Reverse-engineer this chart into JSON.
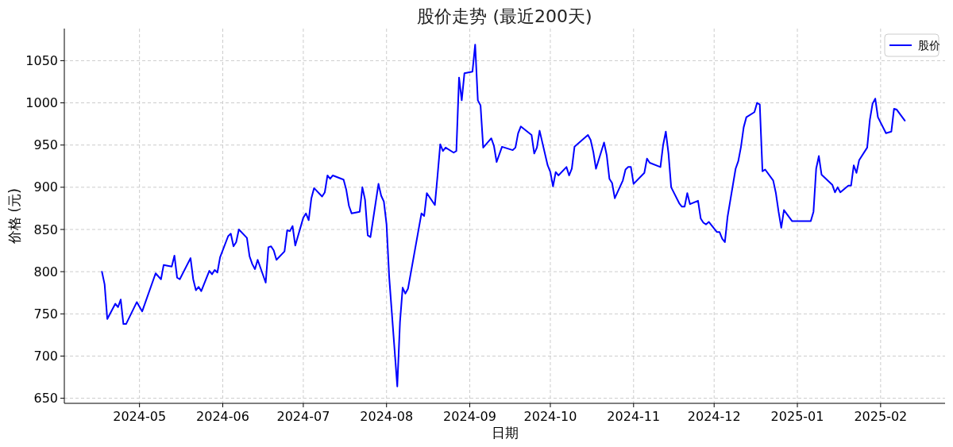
{
  "chart_data": {
    "type": "line",
    "title": "股价走势 (最近200天)",
    "xlabel": "日期",
    "ylabel": "价格 (元)",
    "grid": true,
    "legend": "top right",
    "xlim": [
      "2024-04-03",
      "2025-02-25"
    ],
    "ylim": [
      644,
      1088
    ],
    "xticks": [
      {
        "value": "2024-05-01",
        "label": "2024-05"
      },
      {
        "value": "2024-06-01",
        "label": "2024-06"
      },
      {
        "value": "2024-07-01",
        "label": "2024-07"
      },
      {
        "value": "2024-08-01",
        "label": "2024-08"
      },
      {
        "value": "2024-09-01",
        "label": "2024-09"
      },
      {
        "value": "2024-10-01",
        "label": "2024-10"
      },
      {
        "value": "2024-11-01",
        "label": "2024-11"
      },
      {
        "value": "2024-12-01",
        "label": "2024-12"
      },
      {
        "value": "2025-01-01",
        "label": "2025-01"
      },
      {
        "value": "2025-02-01",
        "label": "2025-02"
      }
    ],
    "yticks": [
      650,
      700,
      750,
      800,
      850,
      900,
      950,
      1000,
      1050
    ],
    "series": [
      {
        "name": "股价",
        "color": "#0000ff",
        "x": [
          "2024-04-17",
          "2024-04-18",
          "2024-04-19",
          "2024-04-22",
          "2024-04-23",
          "2024-04-24",
          "2024-04-25",
          "2024-04-26",
          "2024-04-30",
          "2024-05-02",
          "2024-05-07",
          "2024-05-09",
          "2024-05-10",
          "2024-05-13",
          "2024-05-14",
          "2024-05-15",
          "2024-05-16",
          "2024-05-20",
          "2024-05-21",
          "2024-05-22",
          "2024-05-23",
          "2024-05-24",
          "2024-05-27",
          "2024-05-28",
          "2024-05-29",
          "2024-05-30",
          "2024-05-31",
          "2024-06-03",
          "2024-06-04",
          "2024-06-05",
          "2024-06-06",
          "2024-06-07",
          "2024-06-10",
          "2024-06-11",
          "2024-06-12",
          "2024-06-13",
          "2024-06-14",
          "2024-06-17",
          "2024-06-18",
          "2024-06-19",
          "2024-06-20",
          "2024-06-21",
          "2024-06-24",
          "2024-06-25",
          "2024-06-26",
          "2024-06-27",
          "2024-06-28",
          "2024-07-01",
          "2024-07-02",
          "2024-07-03",
          "2024-07-04",
          "2024-07-05",
          "2024-07-08",
          "2024-07-09",
          "2024-07-10",
          "2024-07-11",
          "2024-07-12",
          "2024-07-16",
          "2024-07-17",
          "2024-07-18",
          "2024-07-19",
          "2024-07-22",
          "2024-07-23",
          "2024-07-24",
          "2024-07-25",
          "2024-07-26",
          "2024-07-29",
          "2024-07-30",
          "2024-07-31",
          "2024-08-01",
          "2024-08-02",
          "2024-08-05",
          "2024-08-06",
          "2024-08-07",
          "2024-08-08",
          "2024-08-09",
          "2024-08-14",
          "2024-08-15",
          "2024-08-16",
          "2024-08-19",
          "2024-08-20",
          "2024-08-21",
          "2024-08-22",
          "2024-08-23",
          "2024-08-26",
          "2024-08-27",
          "2024-08-28",
          "2024-08-29",
          "2024-08-30",
          "2024-09-02",
          "2024-09-03",
          "2024-09-04",
          "2024-09-05",
          "2024-09-06",
          "2024-09-09",
          "2024-09-10",
          "2024-09-11",
          "2024-09-13",
          "2024-09-17",
          "2024-09-18",
          "2024-09-19",
          "2024-09-20",
          "2024-09-24",
          "2024-09-25",
          "2024-09-26",
          "2024-09-27",
          "2024-09-30",
          "2024-10-01",
          "2024-10-02",
          "2024-10-03",
          "2024-10-04",
          "2024-10-07",
          "2024-10-08",
          "2024-10-09",
          "2024-10-10",
          "2024-10-15",
          "2024-10-16",
          "2024-10-17",
          "2024-10-18",
          "2024-10-21",
          "2024-10-22",
          "2024-10-23",
          "2024-10-24",
          "2024-10-25",
          "2024-10-28",
          "2024-10-29",
          "2024-10-30",
          "2024-10-31",
          "2024-11-01",
          "2024-11-05",
          "2024-11-06",
          "2024-11-07",
          "2024-11-11",
          "2024-11-12",
          "2024-11-13",
          "2024-11-14",
          "2024-11-15",
          "2024-11-18",
          "2024-11-19",
          "2024-11-20",
          "2024-11-21",
          "2024-11-22",
          "2024-11-25",
          "2024-11-26",
          "2024-11-27",
          "2024-11-28",
          "2024-11-29",
          "2024-12-02",
          "2024-12-03",
          "2024-12-04",
          "2024-12-05",
          "2024-12-06",
          "2024-12-09",
          "2024-12-10",
          "2024-12-11",
          "2024-12-12",
          "2024-12-13",
          "2024-12-16",
          "2024-12-17",
          "2024-12-18",
          "2024-12-19",
          "2024-12-20",
          "2024-12-23",
          "2024-12-24",
          "2024-12-25",
          "2024-12-26",
          "2024-12-27",
          "2024-12-30",
          "2024-12-31",
          "2025-01-06",
          "2025-01-07",
          "2025-01-08",
          "2025-01-09",
          "2025-01-10",
          "2025-01-14",
          "2025-01-15",
          "2025-01-16",
          "2025-01-17",
          "2025-01-20",
          "2025-01-21",
          "2025-01-22",
          "2025-01-23",
          "2025-01-24",
          "2025-01-27",
          "2025-01-28",
          "2025-01-29",
          "2025-01-30",
          "2025-01-31",
          "2025-02-03",
          "2025-02-05",
          "2025-02-06",
          "2025-02-07",
          "2025-02-10"
        ],
        "values": [
          800,
          785,
          744,
          762,
          758,
          767,
          738,
          738,
          764,
          753,
          798,
          791,
          808,
          806,
          819,
          793,
          791,
          816,
          791,
          778,
          782,
          777,
          801,
          797,
          802,
          799,
          817,
          842,
          845,
          830,
          835,
          850,
          840,
          818,
          809,
          803,
          814,
          787,
          829,
          830,
          825,
          814,
          824,
          849,
          848,
          854,
          831,
          864,
          869,
          861,
          887,
          899,
          889,
          894,
          914,
          910,
          914,
          909,
          897,
          878,
          869,
          871,
          900,
          885,
          843,
          841,
          904,
          890,
          883,
          856,
          793,
          664,
          740,
          781,
          774,
          780,
          869,
          866,
          893,
          879,
          914,
          951,
          943,
          947,
          941,
          943,
          1030,
          1003,
          1035,
          1037,
          1069,
          1003,
          997,
          947,
          958,
          949,
          930,
          948,
          944,
          947,
          964,
          972,
          962,
          940,
          947,
          967,
          926,
          918,
          901,
          918,
          914,
          924,
          914,
          922,
          948,
          962,
          956,
          942,
          922,
          953,
          938,
          910,
          905,
          887,
          908,
          921,
          924,
          924,
          904,
          917,
          934,
          929,
          924,
          950,
          966,
          940,
          900,
          881,
          877,
          877,
          893,
          880,
          884,
          863,
          858,
          856,
          859,
          847,
          847,
          839,
          835,
          865,
          922,
          931,
          948,
          971,
          983,
          989,
          1000,
          998,
          919,
          921,
          908,
          893,
          871,
          852,
          873,
          860,
          860,
          860,
          871,
          922,
          937,
          915,
          903,
          894,
          900,
          894,
          902,
          902,
          926,
          917,
          932,
          947,
          980,
          999,
          1005,
          983,
          964,
          966,
          993,
          992,
          979
        ]
      }
    ]
  }
}
